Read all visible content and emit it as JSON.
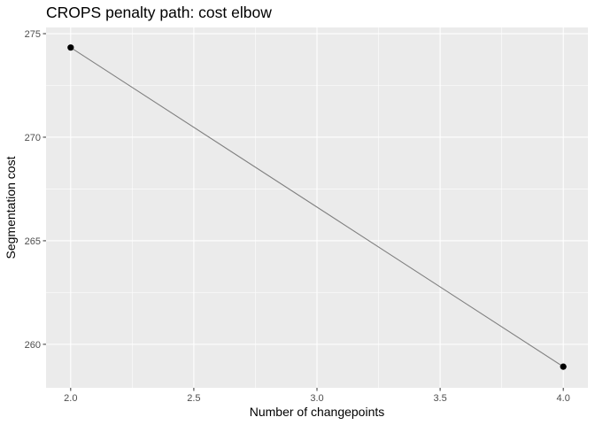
{
  "chart_data": {
    "type": "line",
    "title": "CROPS penalty path: cost elbow",
    "xlabel": "Number of changepoints",
    "ylabel": "Segmentation cost",
    "x": [
      2.0,
      4.0
    ],
    "y": [
      274.33,
      258.92
    ],
    "xlim": [
      1.9,
      4.1
    ],
    "ylim": [
      257.9,
      275.3
    ],
    "xticks": [
      "2.0",
      "2.5",
      "3.0",
      "3.5",
      "4.0"
    ],
    "xtick_values": [
      2.0,
      2.5,
      3.0,
      3.5,
      4.0
    ],
    "yticks": [
      "260",
      "265",
      "270",
      "275"
    ],
    "ytick_values": [
      260,
      265,
      270,
      275
    ],
    "grid": true,
    "legend": "none",
    "colors": {
      "panel_background": "#ebebeb",
      "grid_major": "#ffffff",
      "line": "#808080",
      "points": "#000000"
    }
  }
}
